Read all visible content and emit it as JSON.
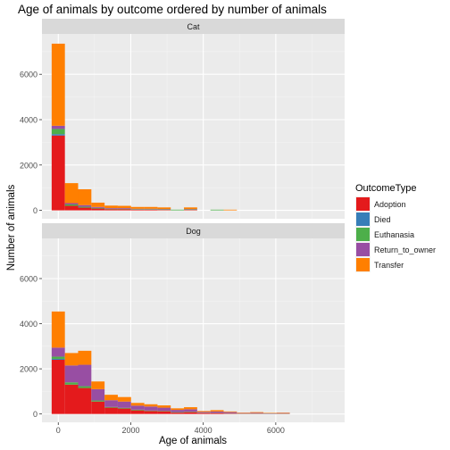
{
  "chart_data": {
    "type": "bar",
    "stacked": true,
    "faceted": true,
    "title": "Age of animals by outcome ordered by number of animals",
    "xlabel": "Age of animals",
    "ylabel": "Number of animals",
    "xlim": [
      -450,
      7900
    ],
    "ylim": [
      -370,
      7780
    ],
    "x_ticks": [
      0,
      2000,
      4000,
      6000
    ],
    "y_ticks": [
      0,
      2000,
      4000,
      6000
    ],
    "bin_width": 365,
    "legend": {
      "title": "OutcomeType",
      "position": "right",
      "entries": [
        "Adoption",
        "Died",
        "Euthanasia",
        "Return_to_owner",
        "Transfer"
      ]
    },
    "colors": {
      "Adoption": "#e41a1c",
      "Died": "#377eb8",
      "Euthanasia": "#4daf4a",
      "Return_to_owner": "#984ea3",
      "Transfer": "#ff7f00"
    },
    "panels": [
      {
        "label": "Cat",
        "bins": [
          {
            "x": 0,
            "Adoption": 3300,
            "Died": 60,
            "Euthanasia": 230,
            "Return_to_owner": 140,
            "Transfer": 3620
          },
          {
            "x": 365,
            "Adoption": 200,
            "Died": 0,
            "Euthanasia": 60,
            "Return_to_owner": 60,
            "Transfer": 880
          },
          {
            "x": 730,
            "Adoption": 120,
            "Died": 0,
            "Euthanasia": 40,
            "Return_to_owner": 70,
            "Transfer": 700
          },
          {
            "x": 1095,
            "Adoption": 80,
            "Died": 0,
            "Euthanasia": 30,
            "Return_to_owner": 40,
            "Transfer": 190
          },
          {
            "x": 1460,
            "Adoption": 50,
            "Died": 0,
            "Euthanasia": 20,
            "Return_to_owner": 30,
            "Transfer": 110
          },
          {
            "x": 1825,
            "Adoption": 50,
            "Died": 0,
            "Euthanasia": 20,
            "Return_to_owner": 30,
            "Transfer": 100
          },
          {
            "x": 2190,
            "Adoption": 30,
            "Died": 0,
            "Euthanasia": 20,
            "Return_to_owner": 20,
            "Transfer": 80
          },
          {
            "x": 2555,
            "Adoption": 30,
            "Died": 0,
            "Euthanasia": 20,
            "Return_to_owner": 20,
            "Transfer": 80
          },
          {
            "x": 2920,
            "Adoption": 20,
            "Died": 0,
            "Euthanasia": 20,
            "Return_to_owner": 20,
            "Transfer": 70
          },
          {
            "x": 3285,
            "Adoption": 0,
            "Died": 0,
            "Euthanasia": 30,
            "Return_to_owner": 0,
            "Transfer": 0
          },
          {
            "x": 3650,
            "Adoption": 20,
            "Died": 0,
            "Euthanasia": 20,
            "Return_to_owner": 20,
            "Transfer": 70
          },
          {
            "x": 4380,
            "Adoption": 0,
            "Died": 0,
            "Euthanasia": 30,
            "Return_to_owner": 0,
            "Transfer": 0
          },
          {
            "x": 4745,
            "Adoption": 0,
            "Died": 0,
            "Euthanasia": 0,
            "Return_to_owner": 0,
            "Transfer": 30
          }
        ]
      },
      {
        "label": "Dog",
        "bins": [
          {
            "x": 0,
            "Adoption": 2400,
            "Died": 40,
            "Euthanasia": 100,
            "Return_to_owner": 400,
            "Transfer": 1600
          },
          {
            "x": 365,
            "Adoption": 1300,
            "Died": 0,
            "Euthanasia": 100,
            "Return_to_owner": 750,
            "Transfer": 550
          },
          {
            "x": 730,
            "Adoption": 1150,
            "Died": 0,
            "Euthanasia": 80,
            "Return_to_owner": 950,
            "Transfer": 620
          },
          {
            "x": 1095,
            "Adoption": 550,
            "Died": 0,
            "Euthanasia": 50,
            "Return_to_owner": 500,
            "Transfer": 340
          },
          {
            "x": 1460,
            "Adoption": 280,
            "Died": 0,
            "Euthanasia": 30,
            "Return_to_owner": 300,
            "Transfer": 240
          },
          {
            "x": 1825,
            "Adoption": 240,
            "Died": 0,
            "Euthanasia": 30,
            "Return_to_owner": 280,
            "Transfer": 200
          },
          {
            "x": 2190,
            "Adoption": 160,
            "Died": 0,
            "Euthanasia": 30,
            "Return_to_owner": 180,
            "Transfer": 120
          },
          {
            "x": 2555,
            "Adoption": 130,
            "Died": 0,
            "Euthanasia": 20,
            "Return_to_owner": 180,
            "Transfer": 100
          },
          {
            "x": 2920,
            "Adoption": 120,
            "Died": 0,
            "Euthanasia": 20,
            "Return_to_owner": 140,
            "Transfer": 100
          },
          {
            "x": 3285,
            "Adoption": 60,
            "Died": 0,
            "Euthanasia": 20,
            "Return_to_owner": 100,
            "Transfer": 70
          },
          {
            "x": 3650,
            "Adoption": 80,
            "Died": 0,
            "Euthanasia": 20,
            "Return_to_owner": 110,
            "Transfer": 90
          },
          {
            "x": 4015,
            "Adoption": 40,
            "Died": 0,
            "Euthanasia": 10,
            "Return_to_owner": 40,
            "Transfer": 40
          },
          {
            "x": 4380,
            "Adoption": 40,
            "Died": 0,
            "Euthanasia": 10,
            "Return_to_owner": 60,
            "Transfer": 60
          },
          {
            "x": 4745,
            "Adoption": 20,
            "Died": 0,
            "Euthanasia": 10,
            "Return_to_owner": 50,
            "Transfer": 30
          },
          {
            "x": 5110,
            "Adoption": 10,
            "Died": 0,
            "Euthanasia": 10,
            "Return_to_owner": 20,
            "Transfer": 20
          },
          {
            "x": 5475,
            "Adoption": 10,
            "Died": 0,
            "Euthanasia": 10,
            "Return_to_owner": 30,
            "Transfer": 30
          },
          {
            "x": 5840,
            "Adoption": 0,
            "Died": 0,
            "Euthanasia": 10,
            "Return_to_owner": 20,
            "Transfer": 20
          },
          {
            "x": 6205,
            "Adoption": 10,
            "Died": 0,
            "Euthanasia": 10,
            "Return_to_owner": 20,
            "Transfer": 20
          }
        ]
      }
    ]
  }
}
